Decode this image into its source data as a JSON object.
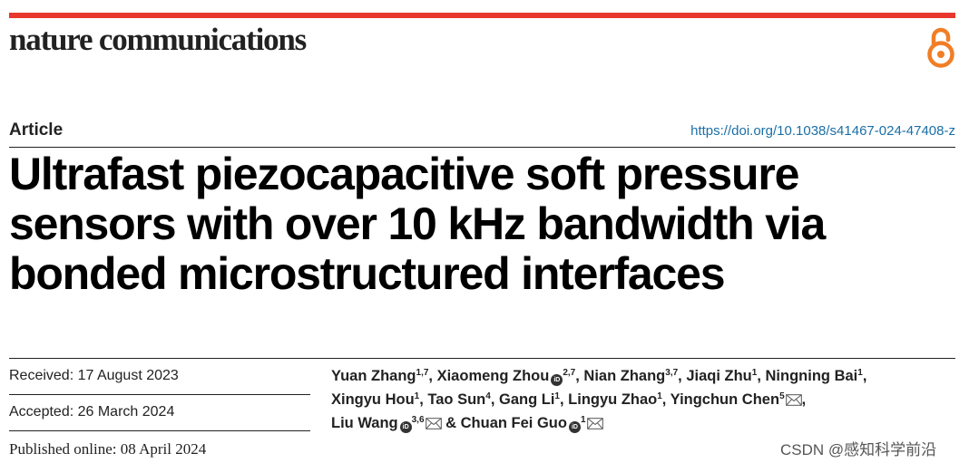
{
  "header": {
    "journal_name": "nature communications",
    "accent_color": "#e8372c",
    "open_access_icon": "open-access-lock-icon"
  },
  "article": {
    "type_label": "Article",
    "doi_link": "https://doi.org/10.1038/s41467-024-47408-z",
    "title": "Ultrafast piezocapacitive soft pressure sensors with over 10 kHz bandwidth via bonded microstructured interfaces"
  },
  "dates": {
    "received": "Received: 17 August 2023",
    "accepted": "Accepted: 26 March 2024",
    "published": "Published online: 08 April 2024"
  },
  "authors": [
    {
      "name": "Yuan Zhang",
      "aff": "1,7",
      "orcid": false,
      "mail": false
    },
    {
      "name": "Xiaomeng Zhou",
      "aff": "2,7",
      "orcid": true,
      "mail": false
    },
    {
      "name": "Nian Zhang",
      "aff": "3,7",
      "orcid": false,
      "mail": false
    },
    {
      "name": "Jiaqi Zhu",
      "aff": "1",
      "orcid": false,
      "mail": false
    },
    {
      "name": "Ningning Bai",
      "aff": "1",
      "orcid": false,
      "mail": false
    },
    {
      "name": "Xingyu Hou",
      "aff": "1",
      "orcid": false,
      "mail": false
    },
    {
      "name": "Tao Sun",
      "aff": "4",
      "orcid": false,
      "mail": false
    },
    {
      "name": "Gang Li",
      "aff": "1",
      "orcid": false,
      "mail": false
    },
    {
      "name": "Lingyu Zhao",
      "aff": "1",
      "orcid": false,
      "mail": false
    },
    {
      "name": "Yingchun Chen",
      "aff": "5",
      "orcid": false,
      "mail": true
    },
    {
      "name": "Liu Wang",
      "aff": "3,6",
      "orcid": true,
      "mail": true
    },
    {
      "name": "Chuan Fei Guo",
      "aff": "1",
      "orcid": true,
      "mail": true
    }
  ],
  "author_separators": [
    ", ",
    ", ",
    ", ",
    ", ",
    ",\n",
    ", ",
    ", ",
    ", ",
    ", ",
    ",\n",
    " & ",
    ""
  ],
  "orcid_badge": "iD",
  "watermark": "CSDN @感知科学前沿"
}
